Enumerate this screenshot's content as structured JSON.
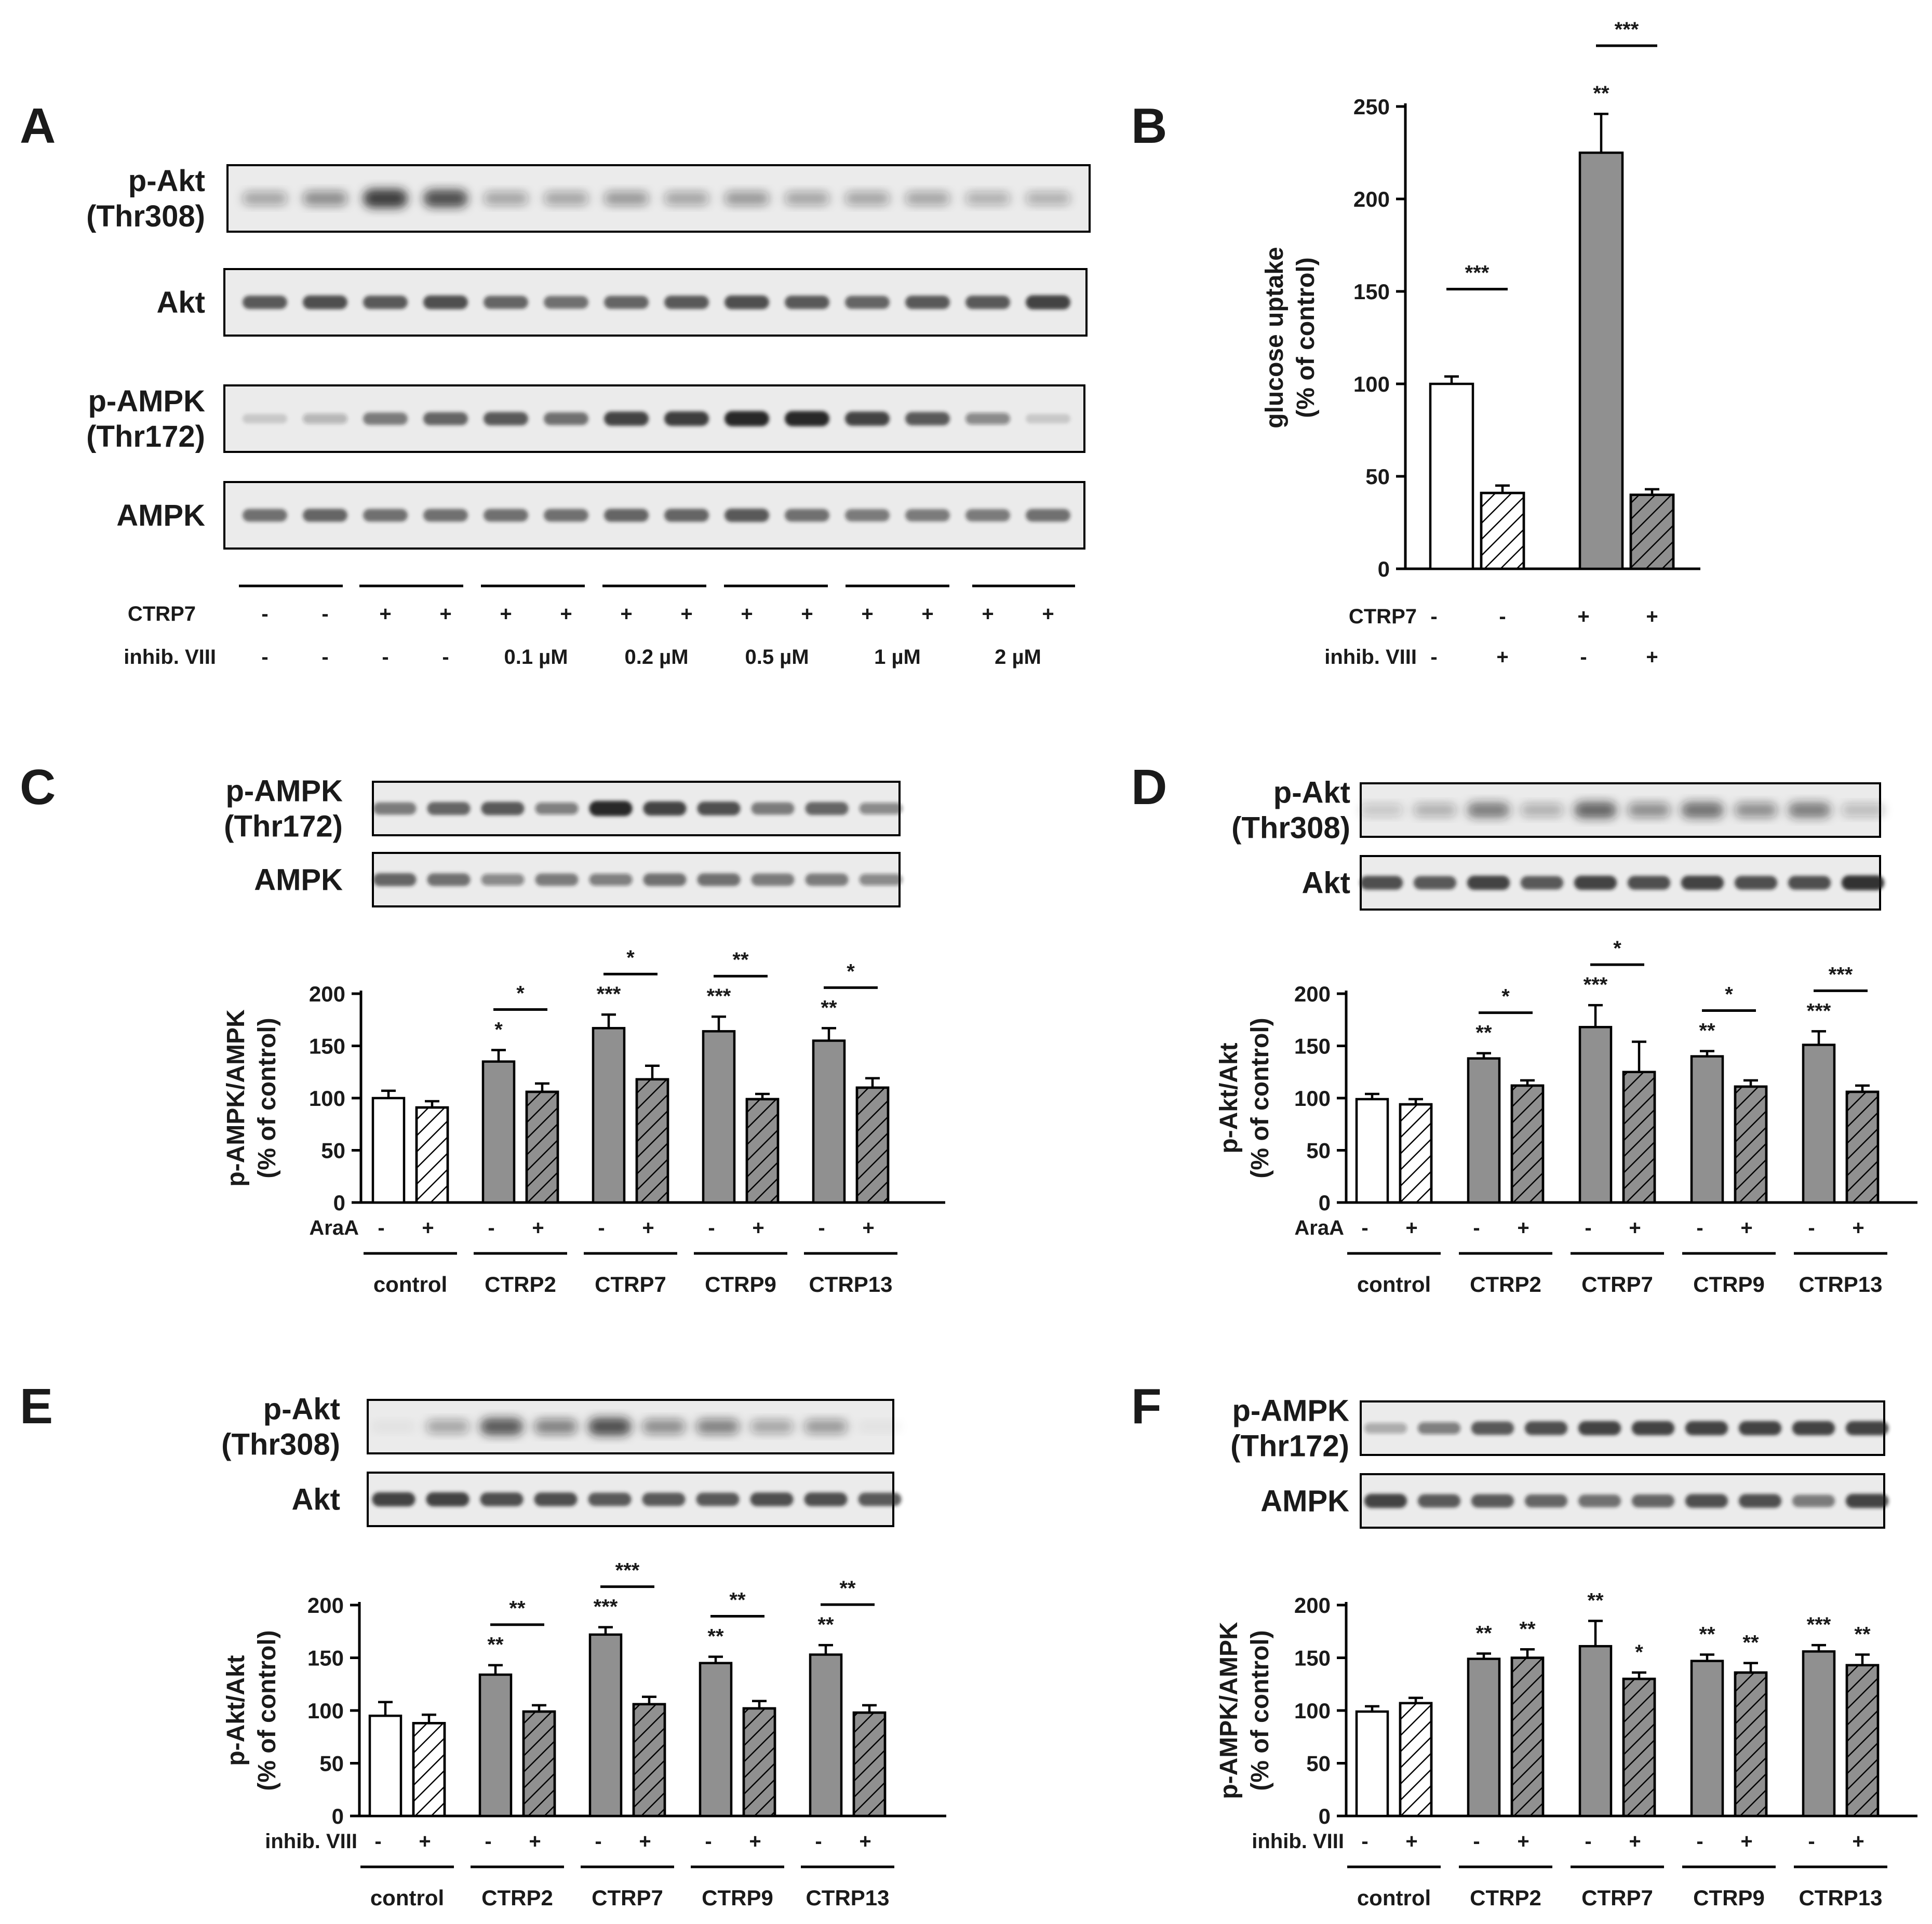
{
  "colors": {
    "treated": "#909090",
    "control": "#ffffff",
    "hatch": "#000000",
    "band": "#1c1c1c",
    "blot_bg": "#ebebeb"
  },
  "blots": [
    {
      "panel": "A",
      "letter": "A",
      "lanes": 14,
      "rows": [
        {
          "label_lines": [
            "p-Akt",
            "(Thr308)"
          ],
          "intensity": [
            0.35,
            0.45,
            0.85,
            0.75,
            0.35,
            0.35,
            0.4,
            0.35,
            0.4,
            0.35,
            0.35,
            0.35,
            0.3,
            0.3
          ],
          "diffuse": true
        },
        {
          "label_lines": [
            "Akt"
          ],
          "intensity": [
            0.7,
            0.75,
            0.7,
            0.75,
            0.65,
            0.6,
            0.65,
            0.7,
            0.75,
            0.7,
            0.65,
            0.7,
            0.7,
            0.8
          ],
          "diffuse": false
        },
        {
          "label_lines": [
            "p-AMPK",
            "(Thr172)"
          ],
          "intensity": [
            0.15,
            0.25,
            0.55,
            0.65,
            0.7,
            0.6,
            0.8,
            0.85,
            0.95,
            0.95,
            0.8,
            0.7,
            0.45,
            0.15
          ],
          "diffuse": false
        },
        {
          "label_lines": [
            "AMPK"
          ],
          "intensity": [
            0.6,
            0.65,
            0.6,
            0.6,
            0.6,
            0.6,
            0.65,
            0.65,
            0.7,
            0.6,
            0.55,
            0.55,
            0.55,
            0.6
          ],
          "diffuse": false
        }
      ]
    },
    {
      "panel": "C",
      "letter": "C",
      "lanes": 10,
      "rows": [
        {
          "label_lines": [
            "p-AMPK",
            "(Thr172)"
          ],
          "intensity": [
            0.55,
            0.65,
            0.7,
            0.5,
            0.95,
            0.8,
            0.75,
            0.55,
            0.65,
            0.45
          ],
          "diffuse": false
        },
        {
          "label_lines": [
            "AMPK"
          ],
          "intensity": [
            0.65,
            0.6,
            0.45,
            0.55,
            0.5,
            0.6,
            0.6,
            0.55,
            0.55,
            0.45
          ],
          "diffuse": false
        }
      ]
    },
    {
      "panel": "D",
      "letter": "D",
      "lanes": 10,
      "rows": [
        {
          "label_lines": [
            "p-Akt",
            "(Thr308)"
          ],
          "intensity": [
            0.2,
            0.3,
            0.55,
            0.3,
            0.65,
            0.45,
            0.6,
            0.45,
            0.55,
            0.25
          ],
          "diffuse": true
        },
        {
          "label_lines": [
            "Akt"
          ],
          "intensity": [
            0.75,
            0.7,
            0.8,
            0.7,
            0.8,
            0.75,
            0.8,
            0.75,
            0.75,
            0.9
          ],
          "diffuse": false
        }
      ]
    },
    {
      "panel": "E",
      "letter": "E",
      "lanes": 10,
      "rows": [
        {
          "label_lines": [
            "p-Akt",
            "(Thr308)"
          ],
          "intensity": [
            0.05,
            0.35,
            0.7,
            0.5,
            0.75,
            0.45,
            0.5,
            0.35,
            0.4,
            0.02
          ],
          "diffuse": true
        },
        {
          "label_lines": [
            "Akt"
          ],
          "intensity": [
            0.8,
            0.8,
            0.75,
            0.75,
            0.7,
            0.7,
            0.7,
            0.75,
            0.75,
            0.7
          ],
          "diffuse": false
        }
      ]
    },
    {
      "panel": "F",
      "letter": "F",
      "lanes": 10,
      "rows": [
        {
          "label_lines": [
            "p-AMPK",
            "(Thr172)"
          ],
          "intensity": [
            0.3,
            0.5,
            0.7,
            0.75,
            0.8,
            0.8,
            0.8,
            0.8,
            0.8,
            0.8
          ],
          "diffuse": false
        },
        {
          "label_lines": [
            "AMPK"
          ],
          "intensity": [
            0.8,
            0.7,
            0.7,
            0.65,
            0.6,
            0.65,
            0.75,
            0.75,
            0.55,
            0.8
          ],
          "diffuse": false
        }
      ]
    }
  ],
  "panelA_conditions": {
    "rows": [
      {
        "label": "CTRP7",
        "values": [
          "-",
          "-",
          "+",
          "+",
          "+",
          "+",
          "+",
          "+",
          "+",
          "+",
          "+",
          "+",
          "+",
          "+"
        ]
      },
      {
        "label": "inhib. VIII",
        "values": [
          "-",
          "-",
          "-",
          "-",
          "0.1 µM",
          "0.2 µM",
          "0.5 µM",
          "1 µM",
          "2 µM"
        ]
      }
    ]
  },
  "chart_data": [
    {
      "panel": "B",
      "letter": "B",
      "type": "bar",
      "ylabel_lines": [
        "glucose uptake",
        "(% of control)"
      ],
      "ylim": [
        0,
        250
      ],
      "ticks": [
        0,
        50,
        100,
        150,
        200,
        250
      ],
      "bars": [
        {
          "value": 100,
          "err": 4,
          "fill": "white",
          "hatched": false
        },
        {
          "value": 41,
          "err": 4,
          "fill": "white",
          "hatched": true
        },
        {
          "value": 225,
          "err": 21,
          "fill": "gray",
          "hatched": false
        },
        {
          "value": 40,
          "err": 3,
          "fill": "gray",
          "hatched": true
        }
      ],
      "above_bar_sig": [
        {
          "bar": 2,
          "text": "**"
        }
      ],
      "brackets": [
        {
          "from": 0,
          "to": 1,
          "text": "***"
        },
        {
          "from": 2,
          "to": 3,
          "text": "***"
        }
      ],
      "conditions": [
        {
          "label": "CTRP7",
          "values": [
            "-",
            "-",
            "+",
            "+"
          ]
        },
        {
          "label": "inhib. VIII",
          "values": [
            "-",
            "+",
            "-",
            "+"
          ]
        }
      ]
    },
    {
      "panel": "C",
      "type": "bar",
      "ylabel_lines": [
        "p-AMPK/AMPK",
        "(% of control)"
      ],
      "ylim": [
        0,
        200
      ],
      "ticks": [
        0,
        50,
        100,
        150,
        200
      ],
      "treatment": "AraA",
      "signs": [
        "-",
        "+"
      ],
      "groups": [
        "control",
        "CTRP2",
        "CTRP7",
        "CTRP9",
        "CTRP13"
      ],
      "bars": [
        {
          "value": 100,
          "err": 7
        },
        {
          "value": 91,
          "err": 6
        },
        {
          "value": 135,
          "err": 11
        },
        {
          "value": 106,
          "err": 8
        },
        {
          "value": 167,
          "err": 13
        },
        {
          "value": 118,
          "err": 13
        },
        {
          "value": 164,
          "err": 14
        },
        {
          "value": 99,
          "err": 5
        },
        {
          "value": 155,
          "err": 12
        },
        {
          "value": 110,
          "err": 9
        }
      ],
      "above_bar_sig": [
        {
          "bar": 2,
          "text": "*"
        },
        {
          "bar": 4,
          "text": "***"
        },
        {
          "bar": 6,
          "text": "***"
        },
        {
          "bar": 8,
          "text": "**"
        }
      ],
      "brackets": [
        {
          "group": 1,
          "text": "*"
        },
        {
          "group": 2,
          "text": "*"
        },
        {
          "group": 3,
          "text": "**"
        },
        {
          "group": 4,
          "text": "*"
        }
      ]
    },
    {
      "panel": "D",
      "type": "bar",
      "ylabel_lines": [
        "p-Akt/Akt",
        "(% of control)"
      ],
      "ylim": [
        0,
        200
      ],
      "ticks": [
        0,
        50,
        100,
        150,
        200
      ],
      "treatment": "AraA",
      "signs": [
        "-",
        "+"
      ],
      "groups": [
        "control",
        "CTRP2",
        "CTRP7",
        "CTRP9",
        "CTRP13"
      ],
      "bars": [
        {
          "value": 99,
          "err": 5
        },
        {
          "value": 94,
          "err": 5
        },
        {
          "value": 138,
          "err": 5
        },
        {
          "value": 112,
          "err": 5
        },
        {
          "value": 168,
          "err": 21
        },
        {
          "value": 125,
          "err": 29
        },
        {
          "value": 140,
          "err": 5
        },
        {
          "value": 111,
          "err": 6
        },
        {
          "value": 151,
          "err": 13
        },
        {
          "value": 106,
          "err": 6
        }
      ],
      "above_bar_sig": [
        {
          "bar": 2,
          "text": "**"
        },
        {
          "bar": 4,
          "text": "***"
        },
        {
          "bar": 6,
          "text": "**"
        },
        {
          "bar": 8,
          "text": "***"
        }
      ],
      "brackets": [
        {
          "group": 1,
          "text": "*"
        },
        {
          "group": 2,
          "text": "*"
        },
        {
          "group": 3,
          "text": "*"
        },
        {
          "group": 4,
          "text": "***"
        }
      ]
    },
    {
      "panel": "E",
      "type": "bar",
      "ylabel_lines": [
        "p-Akt/Akt",
        "(% of control)"
      ],
      "ylim": [
        0,
        200
      ],
      "ticks": [
        0,
        50,
        100,
        150,
        200
      ],
      "treatment": "inhib. VIII",
      "signs": [
        "-",
        "+"
      ],
      "groups": [
        "control",
        "CTRP2",
        "CTRP7",
        "CTRP9",
        "CTRP13"
      ],
      "bars": [
        {
          "value": 95,
          "err": 13
        },
        {
          "value": 88,
          "err": 8
        },
        {
          "value": 134,
          "err": 9
        },
        {
          "value": 99,
          "err": 6
        },
        {
          "value": 172,
          "err": 7
        },
        {
          "value": 106,
          "err": 7
        },
        {
          "value": 145,
          "err": 6
        },
        {
          "value": 102,
          "err": 7
        },
        {
          "value": 153,
          "err": 9
        },
        {
          "value": 98,
          "err": 7
        }
      ],
      "above_bar_sig": [
        {
          "bar": 2,
          "text": "**"
        },
        {
          "bar": 4,
          "text": "***"
        },
        {
          "bar": 6,
          "text": "**"
        },
        {
          "bar": 8,
          "text": "**"
        }
      ],
      "brackets": [
        {
          "group": 1,
          "text": "**"
        },
        {
          "group": 2,
          "text": "***"
        },
        {
          "group": 3,
          "text": "**"
        },
        {
          "group": 4,
          "text": "**"
        }
      ]
    },
    {
      "panel": "F",
      "type": "bar",
      "ylabel_lines": [
        "p-AMPK/AMPK",
        "(% of control)"
      ],
      "ylim": [
        0,
        200
      ],
      "ticks": [
        0,
        50,
        100,
        150,
        200
      ],
      "treatment": "inhib. VIII",
      "signs": [
        "-",
        "+"
      ],
      "groups": [
        "control",
        "CTRP2",
        "CTRP7",
        "CTRP9",
        "CTRP13"
      ],
      "bars": [
        {
          "value": 99,
          "err": 5
        },
        {
          "value": 107,
          "err": 5
        },
        {
          "value": 149,
          "err": 5
        },
        {
          "value": 150,
          "err": 8
        },
        {
          "value": 161,
          "err": 24
        },
        {
          "value": 130,
          "err": 6
        },
        {
          "value": 147,
          "err": 6
        },
        {
          "value": 136,
          "err": 9
        },
        {
          "value": 156,
          "err": 6
        },
        {
          "value": 143,
          "err": 10
        }
      ],
      "above_bar_sig": [
        {
          "bar": 2,
          "text": "**"
        },
        {
          "bar": 3,
          "text": "**"
        },
        {
          "bar": 4,
          "text": "**"
        },
        {
          "bar": 5,
          "text": "*"
        },
        {
          "bar": 6,
          "text": "**"
        },
        {
          "bar": 7,
          "text": "**"
        },
        {
          "bar": 8,
          "text": "***"
        },
        {
          "bar": 9,
          "text": "**"
        }
      ],
      "brackets": []
    }
  ]
}
